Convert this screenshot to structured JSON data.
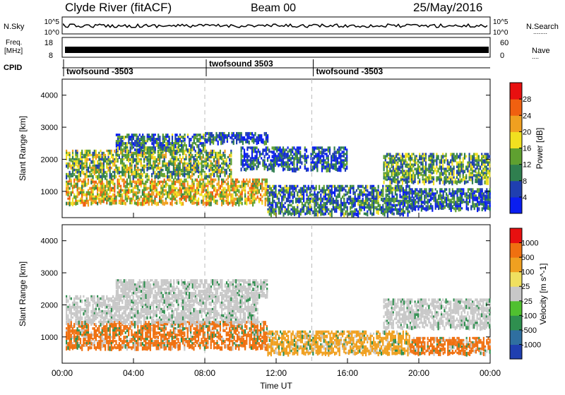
{
  "header": {
    "radar": "Clyde River (fitACF)",
    "beam": "Beam 00",
    "date": "25/May/2016"
  },
  "top_panels": {
    "nsky_label": "N.Sky",
    "nsky_top_tick": "10^5",
    "nsky_bottom_tick": "10^0",
    "nsearch_label": "N.Search",
    "nsearch_dots": "........",
    "freq_label_line1": "Freq.",
    "freq_label_line2": "[MHz]",
    "freq_top_tick": "18",
    "freq_bottom_tick": "8",
    "nave_label": "Nave",
    "nave_dots": "....",
    "nave_top_tick": "60",
    "nave_bottom_tick": "0",
    "cpid_label": "CPID"
  },
  "cpid_segments": [
    {
      "label": "twofsound -3503",
      "start_hour": 0,
      "end_hour": 8
    },
    {
      "label": "twofsound 3503",
      "start_hour": 8,
      "end_hour": 14
    },
    {
      "label": "twofsound -3503",
      "start_hour": 14,
      "end_hour": 24
    }
  ],
  "chart_data": [
    {
      "type": "heatmap",
      "panel": "power",
      "ylabel": "Slant Range [km]",
      "ylim": [
        180,
        4500
      ],
      "yticks": [
        "1000",
        "2000",
        "3000",
        "4000"
      ],
      "ytick_values": [
        1000,
        2000,
        3000,
        4000
      ],
      "xlim": [
        0,
        24
      ],
      "colorbar_label": "Power [dB]",
      "colorbar_ticks": [
        "4",
        "8",
        "12",
        "16",
        "20",
        "24",
        "28"
      ],
      "colorbar_colors": [
        "#0a1ef0",
        "#1f3fb0",
        "#2f7f4f",
        "#5fa030",
        "#f0e020",
        "#f0a020",
        "#f06010",
        "#e81010"
      ],
      "echo_bands": [
        {
          "t0": 0.2,
          "t1": 11.5,
          "r0": 650,
          "r1": 1400,
          "intensity": 0.85
        },
        {
          "t0": 0.2,
          "t1": 9.5,
          "r0": 1500,
          "r1": 2300,
          "intensity": 0.6
        },
        {
          "t0": 3.0,
          "t1": 8.0,
          "r0": 2300,
          "r1": 2800,
          "intensity": 0.35
        },
        {
          "t0": 8.0,
          "t1": 11.5,
          "r0": 2550,
          "r1": 2850,
          "intensity": 0.2
        },
        {
          "t0": 10.0,
          "t1": 16.0,
          "r0": 1700,
          "r1": 2400,
          "intensity": 0.2
        },
        {
          "t0": 11.5,
          "t1": 19.5,
          "r0": 300,
          "r1": 1200,
          "intensity": 0.35
        },
        {
          "t0": 18.0,
          "t1": 24.0,
          "r0": 1300,
          "r1": 2200,
          "intensity": 0.5
        },
        {
          "t0": 19.5,
          "t1": 24.0,
          "r0": 500,
          "r1": 1100,
          "intensity": 0.3
        }
      ]
    },
    {
      "type": "heatmap",
      "panel": "velocity",
      "ylabel": "Slant Range [km]",
      "xlabel": "Time UT",
      "ylim": [
        180,
        4500
      ],
      "yticks": [
        "1000",
        "2000",
        "3000",
        "4000"
      ],
      "ytick_values": [
        1000,
        2000,
        3000,
        4000
      ],
      "xlim": [
        0,
        24
      ],
      "xticks": [
        "00:00",
        "04:00",
        "08:00",
        "12:00",
        "16:00",
        "20:00",
        "00:00"
      ],
      "xtick_values": [
        0,
        4,
        8,
        12,
        16,
        20,
        24
      ],
      "colorbar_label": "Velocity [m s^-1]",
      "colorbar_ticks": [
        "1000",
        "500",
        "100",
        "25",
        "-25",
        "-100",
        "-500",
        "-1000"
      ],
      "colorbar_colors": [
        "#1f3fb0",
        "#2f6fa0",
        "#2f8f4f",
        "#50c030",
        "#c8c8c8",
        "#f0e060",
        "#f0a020",
        "#f07010",
        "#e81010"
      ],
      "echo_bands": [
        {
          "t0": 0.2,
          "t1": 11.5,
          "r0": 650,
          "r1": 1500,
          "color": "#f07010"
        },
        {
          "t0": 0.2,
          "t1": 11.0,
          "r0": 1500,
          "r1": 2300,
          "color": "#c8c8c8"
        },
        {
          "t0": 3.0,
          "t1": 11.5,
          "r0": 2300,
          "r1": 2800,
          "color": "#c8c8c8"
        },
        {
          "t0": 11.5,
          "t1": 19.5,
          "r0": 500,
          "r1": 1200,
          "color": "#f0a020"
        },
        {
          "t0": 18.0,
          "t1": 24.0,
          "r0": 1300,
          "r1": 2200,
          "color": "#c8c8c8"
        },
        {
          "t0": 19.5,
          "t1": 24.0,
          "r0": 500,
          "r1": 1000,
          "color": "#f07010"
        }
      ]
    }
  ]
}
